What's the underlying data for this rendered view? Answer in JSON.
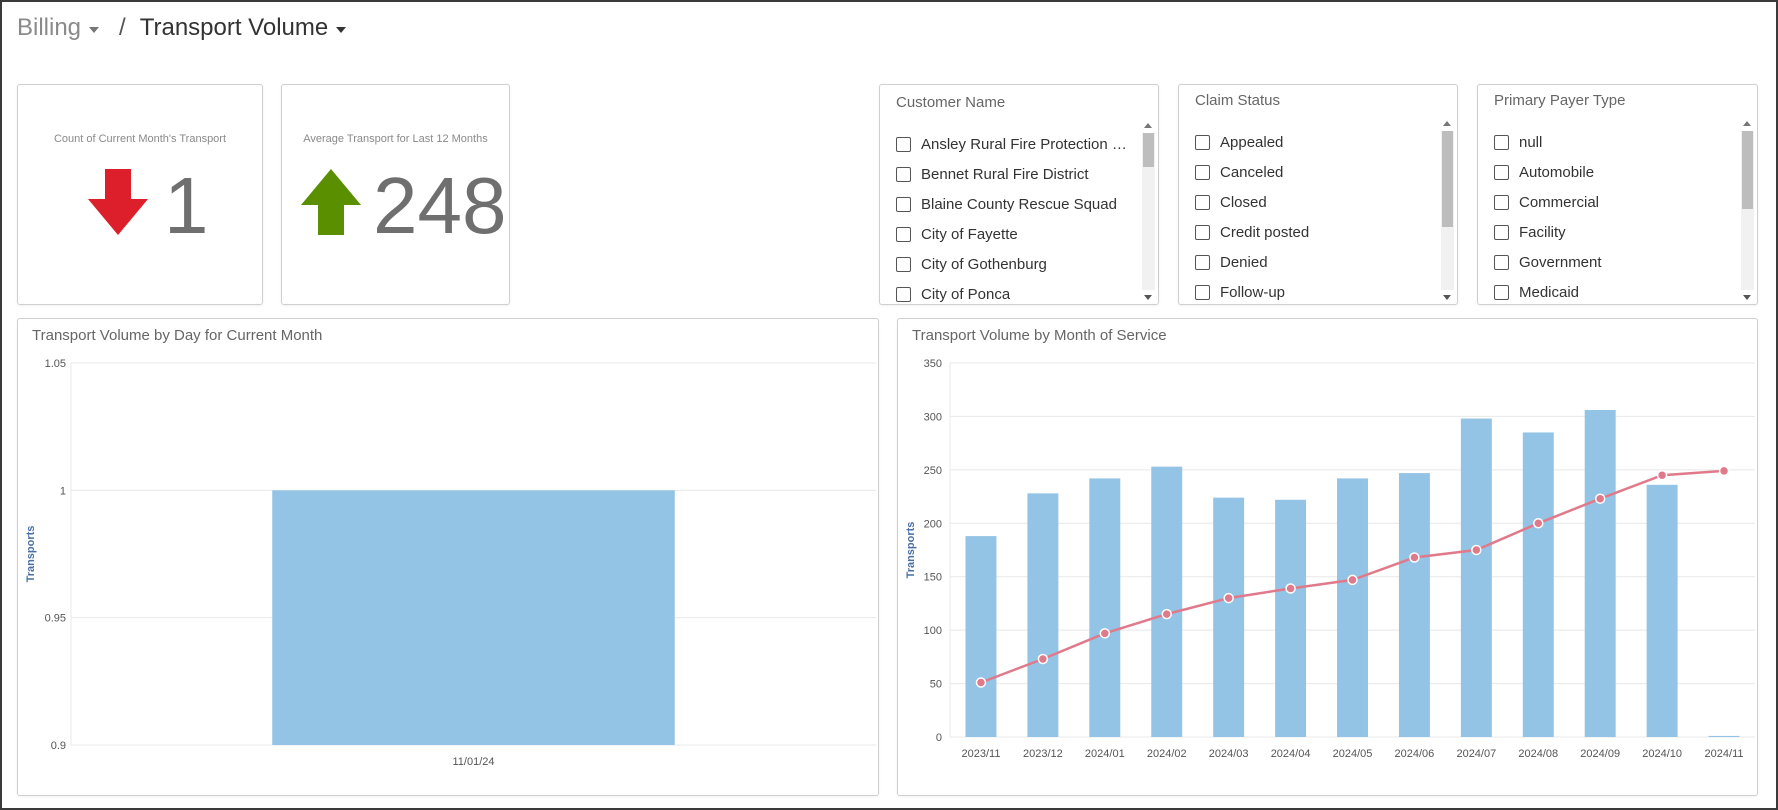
{
  "breadcrumb": {
    "parent": "Billing",
    "separator": "/",
    "current": "Transport Volume"
  },
  "kpis": {
    "current_month": {
      "title": "Count of Current Month's Transport",
      "value": "1",
      "trend": "down",
      "arrow_icon": "arrow-down-icon",
      "arrow_color": "#dd1f2b"
    },
    "last_12_months": {
      "title": "Average Transport for Last 12 Months",
      "value": "248",
      "trend": "up",
      "arrow_icon": "arrow-up-icon",
      "arrow_color": "#5a8f00"
    }
  },
  "filters": {
    "customer_name": {
      "title": "Customer Name",
      "options": [
        "Ansley Rural Fire Protection District",
        "Bennet Rural Fire District",
        "Blaine County Rescue Squad",
        "City of Fayette",
        "City of Gothenburg",
        "City of Ponca"
      ],
      "scroll_position": 0.0
    },
    "claim_status": {
      "title": "Claim Status",
      "options": [
        "Appealed",
        "Canceled",
        "Closed",
        "Credit posted",
        "Denied",
        "Follow-up"
      ],
      "scroll_position": 0.0
    },
    "primary_payer_type": {
      "title": "Primary Payer Type",
      "options": [
        "null",
        "Automobile",
        "Commercial",
        "Facility",
        "Government",
        "Medicaid"
      ],
      "scroll_position": 0.0
    }
  },
  "colors": {
    "bar": "#93c4e5",
    "line": "#e07a8b",
    "grid": "#e8e8e8",
    "axis_label": "#4a6fa5"
  },
  "chart_data": [
    {
      "type": "bar",
      "title": "Transport Volume by Day for Current Month",
      "categories": [
        "11/01/24"
      ],
      "values": [
        1
      ],
      "ylabel": "Transports",
      "ylim": [
        0.9,
        1.05
      ],
      "yticks": [
        0.9,
        0.95,
        1,
        1.05
      ],
      "ytick_labels": [
        "0.9",
        "0.95",
        "1",
        "1.05"
      ],
      "grid": true
    },
    {
      "type": "bar",
      "title": "Transport Volume by Month of Service",
      "categories": [
        "2023/11",
        "2023/12",
        "2024/01",
        "2024/02",
        "2024/03",
        "2024/04",
        "2024/05",
        "2024/06",
        "2024/07",
        "2024/08",
        "2024/09",
        "2024/10",
        "2024/11"
      ],
      "series": [
        {
          "type": "bar",
          "values": [
            188,
            228,
            242,
            253,
            224,
            222,
            242,
            247,
            298,
            285,
            306,
            236,
            1
          ]
        },
        {
          "type": "line",
          "values": [
            51,
            73,
            97,
            115,
            130,
            139,
            147,
            168,
            175,
            200,
            223,
            245,
            249
          ]
        }
      ],
      "ylabel": "Transports",
      "ylim": [
        0,
        350
      ],
      "yticks": [
        0,
        50,
        100,
        150,
        200,
        250,
        300,
        350
      ],
      "grid": true
    }
  ]
}
